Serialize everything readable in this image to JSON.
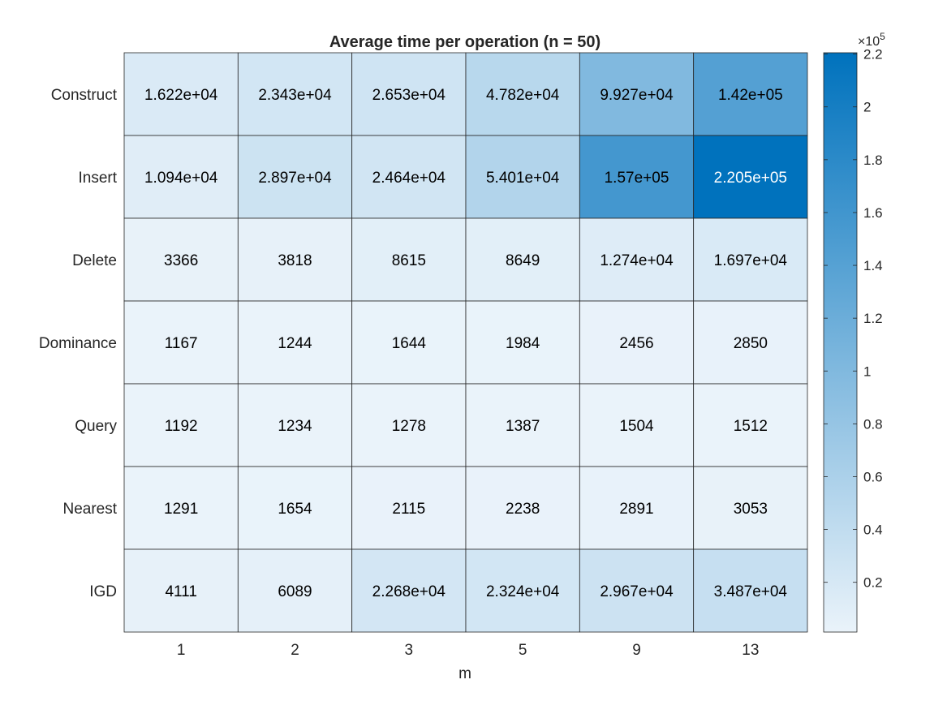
{
  "chart_data": {
    "type": "heatmap",
    "title": "Average time per operation (n = 50)",
    "xlabel": "m",
    "ylabel": "",
    "x_categories": [
      "1",
      "2",
      "3",
      "5",
      "9",
      "13"
    ],
    "y_categories": [
      "Construct",
      "Insert",
      "Delete",
      "Dominance",
      "Query",
      "Nearest",
      "IGD"
    ],
    "values": [
      [
        16220,
        23430,
        26530,
        47820,
        99270,
        142000
      ],
      [
        10940,
        28970,
        24640,
        54010,
        157000,
        220500
      ],
      [
        3366,
        3818,
        8615,
        8649,
        12740,
        16970
      ],
      [
        1167,
        1244,
        1644,
        1984,
        2456,
        2850
      ],
      [
        1192,
        1234,
        1278,
        1387,
        1504,
        1512
      ],
      [
        1291,
        1654,
        2115,
        2238,
        2891,
        3053
      ],
      [
        4111,
        6089,
        22680,
        23240,
        29670,
        34870
      ]
    ],
    "cell_labels": [
      [
        "1.622e+04",
        "2.343e+04",
        "2.653e+04",
        "4.782e+04",
        "9.927e+04",
        "1.42e+05"
      ],
      [
        "1.094e+04",
        "2.897e+04",
        "2.464e+04",
        "5.401e+04",
        "1.57e+05",
        "2.205e+05"
      ],
      [
        "3366",
        "3818",
        "8615",
        "8649",
        "1.274e+04",
        "1.697e+04"
      ],
      [
        "1167",
        "1244",
        "1644",
        "1984",
        "2456",
        "2850"
      ],
      [
        "1192",
        "1234",
        "1278",
        "1387",
        "1504",
        "1512"
      ],
      [
        "1291",
        "1654",
        "2115",
        "2238",
        "2891",
        "3053"
      ],
      [
        "4111",
        "6089",
        "2.268e+04",
        "2.324e+04",
        "2.967e+04",
        "3.487e+04"
      ]
    ],
    "colorbar": {
      "min": 1167,
      "max": 220500,
      "ticks": [
        0.2,
        0.4,
        0.6,
        0.8,
        1,
        1.2,
        1.4,
        1.6,
        1.8,
        2,
        2.2
      ],
      "tick_labels": [
        "0.2",
        "0.4",
        "0.6",
        "0.8",
        "1",
        "1.2",
        "1.4",
        "1.6",
        "1.8",
        "2",
        "2.2"
      ],
      "multiplier": 100000,
      "exponent_base": "×10",
      "exponent_power": "5"
    },
    "colormap": {
      "low": "#EAF3FA",
      "high": "#0072BD"
    },
    "label_colors": {
      "dark": "#000000",
      "light": "#ffffff"
    },
    "grid": true
  }
}
